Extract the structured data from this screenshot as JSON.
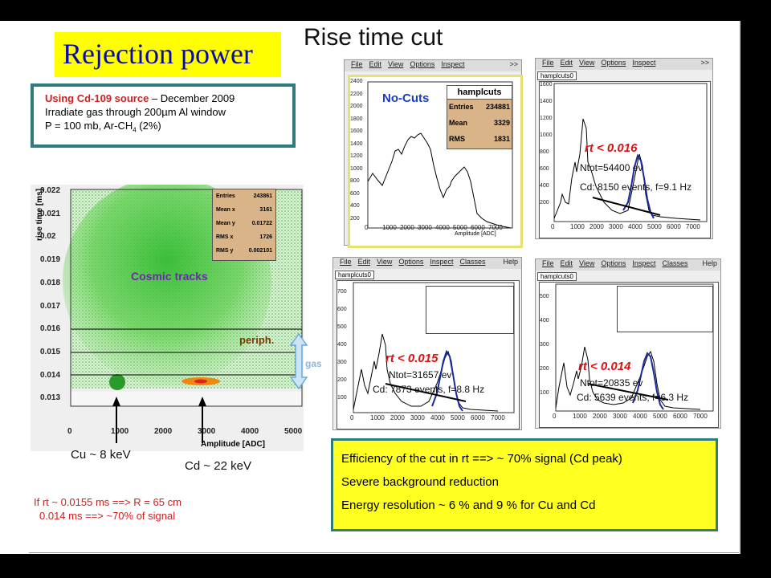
{
  "title": "Rejection power",
  "subtitle": "Rise time cut",
  "source_info": {
    "source_label": "Using Cd-109 source",
    "date": " – December 2009",
    "line2": "Irradiate gas through 200µm Al window",
    "line3_a": "P = 100 mb,  Ar-CH",
    "line3_sub": "4",
    "line3_b": " (2%)"
  },
  "colors": {
    "title_bg": "#ffff00",
    "title_text": "#0a0aa8",
    "highlight": "#dd1111",
    "frame": "#2f7a7a",
    "fit_curve": "#1a2a9a"
  },
  "scatter": {
    "y_axis_label": "rise time [ms]",
    "x_axis_label": "Amplitude [ADC]",
    "y_ticks": [
      "0.022",
      "0.021",
      "0.02",
      "0.019",
      "0.018",
      "0.017",
      "0.016",
      "0.015",
      "0.014",
      "0.013"
    ],
    "x_ticks": [
      "0",
      "1000",
      "2000",
      "3000",
      "4000",
      "5000"
    ],
    "cosmic_label": "Cosmic tracks",
    "periph_label": "periph.",
    "gas_label": "gas",
    "stats": {
      "entries_label": "Entries",
      "entries": "243861",
      "meanx_label": "Mean x",
      "meanx": "3161",
      "meany_label": "Mean y",
      "meany": "0.01722",
      "rmsx_label": "RMS x",
      "rmsx": "1726",
      "rmsy_label": "RMS y",
      "rmsy": "0.002101"
    },
    "cu_label": "Cu ~ 8 keV",
    "cd_label": "Cd ~ 22 keV"
  },
  "footnotes": {
    "line1": "If rt ~ 0.0155 ms ==> R = 65 cm",
    "line2": "0.014 ms ==> ~70% of signal"
  },
  "menu_a": {
    "items": [
      "File",
      "Edit",
      "View",
      "Options",
      "Inspect"
    ],
    "corner": ">>"
  },
  "menu_b": {
    "items": [
      "File",
      "Edit",
      "View",
      "Options",
      "Inspect",
      "Classes"
    ],
    "corner": "Help"
  },
  "hist_nocuts": {
    "label": "No-Cuts",
    "stats_title": "hamplcuts",
    "entries_label": "Entries",
    "entries": "234881",
    "mean_label": "Mean",
    "mean": "3329",
    "rms_label": "RMS",
    "rms": "1831",
    "x_label": "Amplitude [ADC]",
    "x_ticks": [
      "0",
      "1000",
      "2000",
      "3000",
      "4000",
      "5000",
      "6000",
      "7000"
    ],
    "y_ticks": [
      "2400",
      "2200",
      "2000",
      "1800",
      "1600",
      "1400",
      "1200",
      "1000",
      "800",
      "600",
      "400",
      "200"
    ]
  },
  "hist_016": {
    "name": "hamplcuts0",
    "cut": "rt < 0.016",
    "ntot": "Ntot=54400 ev",
    "cd": "Cd: 8150 events, f=9.1 Hz",
    "y_ticks": [
      "1600",
      "1400",
      "1200",
      "1000",
      "800",
      "600",
      "400",
      "200"
    ],
    "x_ticks": [
      "0",
      "1000",
      "2000",
      "3000",
      "4000",
      "5000",
      "6000",
      "7000"
    ]
  },
  "hist_015": {
    "name": "hamplcuts0",
    "cut": "rt < 0.015",
    "ntot": "Ntot=31657 ev",
    "cd": "Cd: 7873 events, f=8.8 Hz",
    "y_ticks": [
      "700",
      "600",
      "500",
      "400",
      "300",
      "200",
      "100"
    ],
    "x_ticks": [
      "0",
      "1000",
      "2000",
      "3000",
      "4000",
      "5000",
      "6000",
      "7000"
    ]
  },
  "hist_014": {
    "name": "hamplcuts0",
    "cut": "rt < 0.014",
    "ntot": "Ntot=20835 ev",
    "cd": "Cd: 5639 events, f=6.3 Hz",
    "y_ticks": [
      "500",
      "400",
      "300",
      "200",
      "100"
    ],
    "x_ticks": [
      "0",
      "1000",
      "2000",
      "3000",
      "4000",
      "5000",
      "6000",
      "7000"
    ]
  },
  "efficiency": {
    "line1": "Efficiency of the cut in rt  ==> ~ 70% signal (Cd peak)",
    "line2": "Severe background reduction",
    "line3": "Energy resolution ~ 6 % and 9 % for Cu and Cd"
  }
}
